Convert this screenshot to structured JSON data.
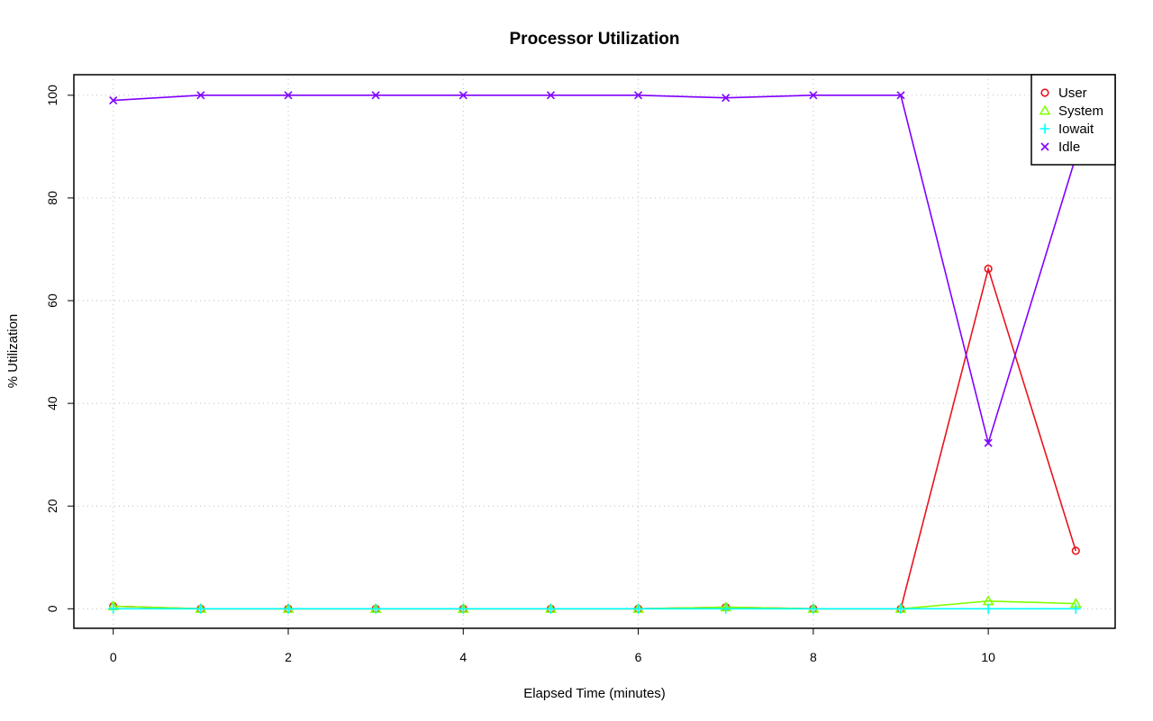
{
  "chart_data": {
    "type": "line",
    "title": "Processor Utilization",
    "xlabel": "Elapsed Time (minutes)",
    "ylabel": "% Utilization",
    "x": [
      0,
      1,
      2,
      3,
      4,
      5,
      6,
      7,
      8,
      9,
      10,
      11
    ],
    "xlim": [
      -0.45,
      11.45
    ],
    "ylim": [
      -3.8,
      104
    ],
    "xticks": [
      "0",
      "2",
      "4",
      "6",
      "8",
      "10"
    ],
    "yticks": [
      "0",
      "20",
      "40",
      "60",
      "80",
      "100"
    ],
    "grid": true,
    "legend_position": "top-right",
    "series": [
      {
        "name": "User",
        "color": "#e8141e",
        "marker": "circle",
        "values": [
          0.5,
          0,
          0,
          0,
          0,
          0,
          0,
          0.3,
          0,
          0,
          66.2,
          11.3
        ]
      },
      {
        "name": "System",
        "color": "#80ff00",
        "marker": "triangle",
        "values": [
          0.5,
          0,
          0,
          0,
          0,
          0,
          0,
          0.3,
          0,
          0,
          1.5,
          1.0
        ]
      },
      {
        "name": "Iowait",
        "color": "#00ffff",
        "marker": "plus",
        "values": [
          0,
          0,
          0,
          0,
          0,
          0,
          0,
          0,
          0,
          0,
          0,
          0
        ]
      },
      {
        "name": "Idle",
        "color": "#8000ff",
        "marker": "cross",
        "values": [
          99,
          100,
          100,
          100,
          100,
          100,
          100,
          99.5,
          100,
          100,
          32.3,
          88
        ]
      }
    ]
  }
}
